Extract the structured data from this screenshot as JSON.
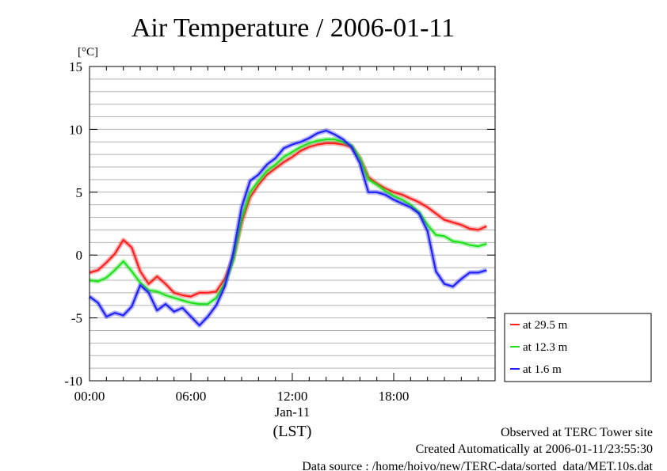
{
  "chart_data": {
    "type": "line",
    "title": "Air Temperature / 2006-01-11",
    "ylabel": "[°C]",
    "ylim": [
      -10,
      15
    ],
    "xlim": [
      0,
      24
    ],
    "y_ticks": [
      {
        "value": 15,
        "label": "15"
      },
      {
        "value": 10,
        "label": "10"
      },
      {
        "value": 5,
        "label": "5"
      },
      {
        "value": 0,
        "label": "0"
      },
      {
        "value": -5,
        "label": "-5"
      },
      {
        "value": -10,
        "label": "-10"
      }
    ],
    "x_ticks": [
      {
        "value": 0,
        "label": "00:00"
      },
      {
        "value": 6,
        "label": "06:00"
      },
      {
        "value": 12,
        "label": "12:00"
      },
      {
        "value": 18,
        "label": "18:00"
      }
    ],
    "x_date_label": "Jan-11",
    "x_axis_label": "(LST)",
    "grid": true,
    "legend_position": "right",
    "series": [
      {
        "name": "at 29.5 m",
        "color": "#ff2020",
        "x": [
          0,
          0.5,
          1,
          1.5,
          2,
          2.5,
          3,
          3.5,
          4,
          4.5,
          5,
          5.5,
          6,
          6.5,
          7,
          7.5,
          8,
          8.5,
          9,
          9.5,
          10,
          10.5,
          11,
          11.5,
          12,
          12.5,
          13,
          13.5,
          14,
          14.5,
          15,
          15.5,
          16,
          16.5,
          17,
          17.5,
          18,
          18.5,
          19,
          19.5,
          20,
          20.5,
          21,
          21.5,
          22,
          22.5,
          23,
          23.5
        ],
        "y": [
          -1.4,
          -1.2,
          -0.6,
          0.1,
          1.2,
          0.6,
          -1.3,
          -2.3,
          -1.7,
          -2.3,
          -3.0,
          -3.2,
          -3.3,
          -3.0,
          -3.0,
          -2.9,
          -1.9,
          -0.3,
          2.6,
          4.6,
          5.6,
          6.4,
          6.9,
          7.4,
          7.8,
          8.3,
          8.6,
          8.8,
          8.9,
          8.9,
          8.8,
          8.6,
          7.7,
          6.2,
          5.7,
          5.3,
          5.0,
          4.8,
          4.5,
          4.2,
          3.8,
          3.3,
          2.8,
          2.6,
          2.4,
          2.1,
          2.0,
          2.3
        ]
      },
      {
        "name": "at 12.3 m",
        "color": "#20e020",
        "x": [
          0,
          0.5,
          1,
          1.5,
          2,
          2.5,
          3,
          3.5,
          4,
          4.5,
          5,
          5.5,
          6,
          6.5,
          7,
          7.5,
          8,
          8.5,
          9,
          9.5,
          10,
          10.5,
          11,
          11.5,
          12,
          12.5,
          13,
          13.5,
          14,
          14.5,
          15,
          15.5,
          16,
          16.5,
          17,
          17.5,
          18,
          18.5,
          19,
          19.5,
          20,
          20.5,
          21,
          21.5,
          22,
          22.5,
          23,
          23.5
        ],
        "y": [
          -2.0,
          -2.1,
          -1.8,
          -1.2,
          -0.5,
          -1.3,
          -2.2,
          -2.8,
          -2.9,
          -3.2,
          -3.4,
          -3.6,
          -3.8,
          -3.9,
          -3.9,
          -3.4,
          -2.3,
          -0.4,
          2.9,
          5.0,
          5.9,
          6.7,
          7.2,
          7.8,
          8.2,
          8.6,
          8.9,
          9.1,
          9.2,
          9.2,
          9.0,
          8.7,
          7.7,
          6.0,
          5.6,
          5.1,
          4.7,
          4.4,
          4.0,
          3.4,
          2.4,
          1.6,
          1.5,
          1.1,
          1.0,
          0.8,
          0.7,
          0.9
        ]
      },
      {
        "name": "at 1.6 m",
        "color": "#2020ff",
        "x": [
          0,
          0.5,
          1,
          1.5,
          2,
          2.5,
          3,
          3.5,
          4,
          4.5,
          5,
          5.5,
          6,
          6.5,
          7,
          7.5,
          8,
          8.5,
          9,
          9.5,
          10,
          10.5,
          11,
          11.5,
          12,
          12.5,
          13,
          13.5,
          14,
          14.5,
          15,
          15.5,
          16,
          16.5,
          17,
          17.5,
          18,
          18.5,
          19,
          19.5,
          20,
          20.5,
          21,
          21.5,
          22,
          22.5,
          23,
          23.5
        ],
        "y": [
          -3.3,
          -3.8,
          -4.9,
          -4.6,
          -4.8,
          -4.1,
          -2.4,
          -3.0,
          -4.4,
          -3.9,
          -4.5,
          -4.2,
          -4.9,
          -5.6,
          -4.9,
          -4.0,
          -2.5,
          0.1,
          3.8,
          5.9,
          6.4,
          7.2,
          7.7,
          8.5,
          8.8,
          9.0,
          9.3,
          9.7,
          9.9,
          9.6,
          9.2,
          8.6,
          7.3,
          5.0,
          5.0,
          4.8,
          4.4,
          4.1,
          3.8,
          3.3,
          1.9,
          -1.3,
          -2.3,
          -2.5,
          -1.9,
          -1.4,
          -1.4,
          -1.2
        ]
      }
    ]
  },
  "footer": {
    "line1": "Observed at TERC Tower site",
    "line2": "Created Automatically at 2006-01-11/23:55:30",
    "line3": "Data source : /home/hoivo/new/TERC-data/sorted_data/MET.10s.dat"
  }
}
